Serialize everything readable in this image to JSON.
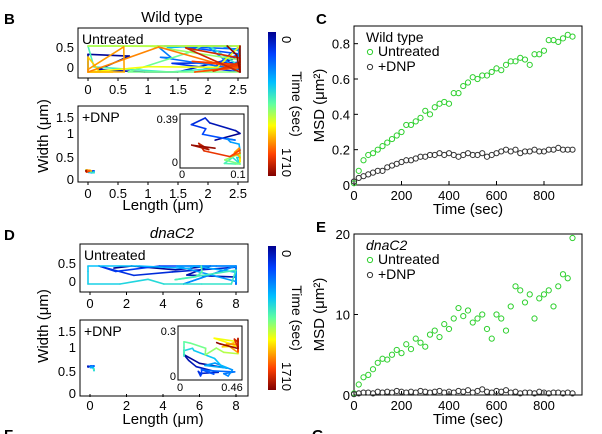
{
  "panels": {
    "B": {
      "label": "B",
      "title": "Wild type",
      "top_plot": {
        "inner_label": "Untreated",
        "y_ticks": [
          "0.5",
          "0"
        ],
        "x_ticks": [
          "0",
          "0.5",
          "1",
          "1.5",
          "2",
          "2.5"
        ]
      },
      "bottom_plot": {
        "inner_label": "+DNP",
        "y_ticks": [
          "1.5",
          "1",
          "0.5",
          "0"
        ],
        "x_ticks": [
          "0",
          "0.5",
          "1",
          "1.5",
          "2",
          "2.5"
        ],
        "inset": {
          "y_max": "0.39",
          "y_min": "0",
          "x_min": "0",
          "x_max": "0.1"
        }
      },
      "y_label": "Width (μm)",
      "x_label": "Length (μm)",
      "colorbar": {
        "top": "0",
        "bottom": "1710",
        "label": "Time (sec)"
      }
    },
    "D": {
      "label": "D",
      "title": "dnaC2",
      "top_plot": {
        "inner_label": "Untreated",
        "y_ticks": [
          "0.5",
          "0"
        ],
        "x_ticks": [
          "0",
          "2",
          "4",
          "6",
          "8"
        ]
      },
      "bottom_plot": {
        "inner_label": "+DNP",
        "y_ticks": [
          "1.5",
          "1",
          "0.5",
          "0"
        ],
        "x_ticks": [
          "0",
          "2",
          "4",
          "6",
          "8"
        ],
        "inset": {
          "y_max": "0.3",
          "y_min": "0",
          "x_min": "0",
          "x_max": "0.46"
        }
      },
      "y_label": "Width (μm)",
      "x_label": "Length (μm)",
      "colorbar": {
        "top": "0",
        "bottom": "1710",
        "label": "Time (sec)"
      }
    },
    "F": {
      "label": "F"
    },
    "G": {
      "label": "G"
    }
  },
  "colors": {
    "untreated": "#2fd02f",
    "dnp": "#333333",
    "axis": "#000000"
  },
  "chart_data": [
    {
      "type": "scatter",
      "panel": "C",
      "label": "C",
      "legend_title": "Wild type",
      "legend_position": "top-left",
      "xlabel": "Time (sec)",
      "ylabel": "MSD (μm²)",
      "xlim": [
        0,
        960
      ],
      "ylim": [
        0,
        0.9
      ],
      "x_ticks": [
        "0",
        "200",
        "400",
        "600",
        "800"
      ],
      "y_ticks": [
        "0",
        "0.2",
        "0.4",
        "0.6",
        "0.8"
      ],
      "series": [
        {
          "name": "Untreated",
          "x": [
            0,
            20,
            40,
            60,
            80,
            100,
            120,
            140,
            160,
            180,
            200,
            220,
            240,
            260,
            280,
            300,
            320,
            340,
            360,
            380,
            400,
            420,
            440,
            460,
            480,
            500,
            520,
            540,
            560,
            580,
            600,
            620,
            640,
            660,
            680,
            700,
            720,
            740,
            760,
            780,
            800,
            820,
            840,
            860,
            880,
            900,
            920
          ],
          "y": [
            0.01,
            0.08,
            0.14,
            0.17,
            0.18,
            0.2,
            0.22,
            0.24,
            0.26,
            0.28,
            0.3,
            0.34,
            0.34,
            0.36,
            0.38,
            0.42,
            0.4,
            0.44,
            0.46,
            0.47,
            0.46,
            0.52,
            0.52,
            0.56,
            0.58,
            0.61,
            0.6,
            0.62,
            0.62,
            0.64,
            0.66,
            0.65,
            0.68,
            0.7,
            0.7,
            0.72,
            0.71,
            0.68,
            0.74,
            0.74,
            0.76,
            0.82,
            0.82,
            0.81,
            0.83,
            0.85,
            0.84
          ]
        },
        {
          "name": "+DNP",
          "x": [
            0,
            20,
            40,
            60,
            80,
            100,
            120,
            140,
            160,
            180,
            200,
            220,
            240,
            260,
            280,
            300,
            320,
            340,
            360,
            380,
            400,
            420,
            440,
            460,
            480,
            500,
            520,
            540,
            560,
            580,
            600,
            620,
            640,
            660,
            680,
            700,
            720,
            740,
            760,
            780,
            800,
            820,
            840,
            860,
            880,
            900,
            920
          ],
          "y": [
            0.02,
            0.04,
            0.05,
            0.06,
            0.07,
            0.08,
            0.08,
            0.1,
            0.11,
            0.12,
            0.13,
            0.14,
            0.14,
            0.15,
            0.16,
            0.16,
            0.17,
            0.17,
            0.18,
            0.17,
            0.18,
            0.17,
            0.16,
            0.17,
            0.18,
            0.17,
            0.17,
            0.18,
            0.16,
            0.17,
            0.18,
            0.19,
            0.2,
            0.19,
            0.2,
            0.18,
            0.19,
            0.19,
            0.2,
            0.19,
            0.19,
            0.2,
            0.2,
            0.21,
            0.2,
            0.2,
            0.2
          ]
        }
      ]
    },
    {
      "type": "scatter",
      "panel": "E",
      "label": "E",
      "legend_title": "dnaC2",
      "legend_position": "top-left",
      "xlabel": "Time (sec)",
      "ylabel": "MSD (μm²)",
      "xlim": [
        0,
        960
      ],
      "ylim": [
        0,
        20
      ],
      "x_ticks": [
        "0",
        "200",
        "400",
        "600",
        "800"
      ],
      "y_ticks": [
        "0",
        "10",
        "20"
      ],
      "series": [
        {
          "name": "Untreated",
          "x": [
            0,
            20,
            40,
            60,
            80,
            100,
            120,
            140,
            160,
            180,
            200,
            220,
            240,
            260,
            280,
            300,
            320,
            340,
            360,
            380,
            400,
            420,
            440,
            460,
            480,
            500,
            520,
            540,
            560,
            580,
            600,
            620,
            640,
            660,
            680,
            700,
            720,
            740,
            760,
            780,
            800,
            820,
            840,
            860,
            880,
            900,
            920
          ],
          "y": [
            0.2,
            1.3,
            2.2,
            2.5,
            3.2,
            4.0,
            4.5,
            4.4,
            5.0,
            5.6,
            5.2,
            6.3,
            5.7,
            7.0,
            6.5,
            6.0,
            7.5,
            8.0,
            7.2,
            8.8,
            8.2,
            9.5,
            10.8,
            9.8,
            10.5,
            9.0,
            9.5,
            10.0,
            8.2,
            7.0,
            10.0,
            9.5,
            8.0,
            11.0,
            13.5,
            13.0,
            11.5,
            12.5,
            9.5,
            12.0,
            12.5,
            13.0,
            11.0,
            13.5,
            15.0,
            14.5,
            19.5
          ]
        },
        {
          "name": "+DNP",
          "x": [
            0,
            20,
            40,
            60,
            80,
            100,
            120,
            140,
            160,
            180,
            200,
            220,
            240,
            260,
            280,
            300,
            320,
            340,
            360,
            380,
            400,
            420,
            440,
            460,
            480,
            500,
            520,
            540,
            560,
            580,
            600,
            620,
            640,
            660,
            680,
            700,
            720,
            740,
            760,
            780,
            800,
            820,
            840,
            860,
            880,
            900,
            920
          ],
          "y": [
            0.1,
            0.2,
            0.3,
            0.3,
            0.2,
            0.4,
            0.3,
            0.4,
            0.3,
            0.5,
            0.4,
            0.3,
            0.4,
            0.3,
            0.5,
            0.4,
            0.3,
            0.4,
            0.5,
            0.3,
            0.4,
            0.3,
            0.5,
            0.4,
            0.6,
            0.3,
            0.5,
            0.7,
            0.4,
            0.3,
            0.5,
            0.4,
            0.6,
            0.3,
            0.4,
            0.2,
            0.3,
            0.3,
            0.2,
            0.4,
            0.3,
            0.2,
            0.3,
            0.3,
            0.2,
            0.3,
            0.2
          ]
        }
      ]
    }
  ]
}
